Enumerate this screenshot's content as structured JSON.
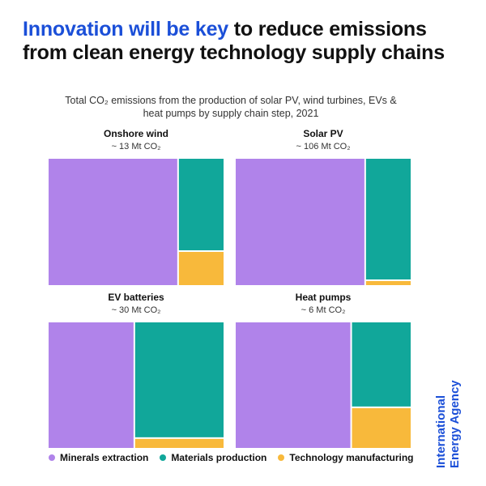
{
  "headline": {
    "accent": "Innovation will be key",
    "rest": " to reduce emissions from clean energy technology supply chains"
  },
  "subtitle_line1": "Total CO₂ emissions from the production of solar PV, wind turbines, EVs &",
  "subtitle_line2": "heat pumps by supply chain step, 2021",
  "colors": {
    "minerals": "#b083ea",
    "materials": "#11a79a",
    "manufacturing": "#f8b93b"
  },
  "brand": "International Energy Agency",
  "chart_data": {
    "type": "treemap",
    "subtitle": "Total CO₂ emissions from the production of solar PV, wind turbines, EVs & heat pumps by supply chain step, 2021",
    "legend": [
      "Minerals extraction",
      "Materials production",
      "Technology manufacturing"
    ],
    "legend_position": "bottom",
    "panels": [
      {
        "name": "Onshore wind",
        "total_label": "~ 13 Mt CO₂",
        "shares": [
          0.74,
          0.19,
          0.07
        ]
      },
      {
        "name": "Solar PV",
        "total_label": "~ 106 Mt CO₂",
        "shares": [
          0.74,
          0.25,
          0.01
        ]
      },
      {
        "name": "EV batteries",
        "total_label": "~ 30 Mt CO₂",
        "shares": [
          0.49,
          0.47,
          0.04
        ]
      },
      {
        "name": "Heat pumps",
        "total_label": "~ 6 Mt CO₂",
        "shares": [
          0.66,
          0.23,
          0.11
        ]
      }
    ]
  }
}
